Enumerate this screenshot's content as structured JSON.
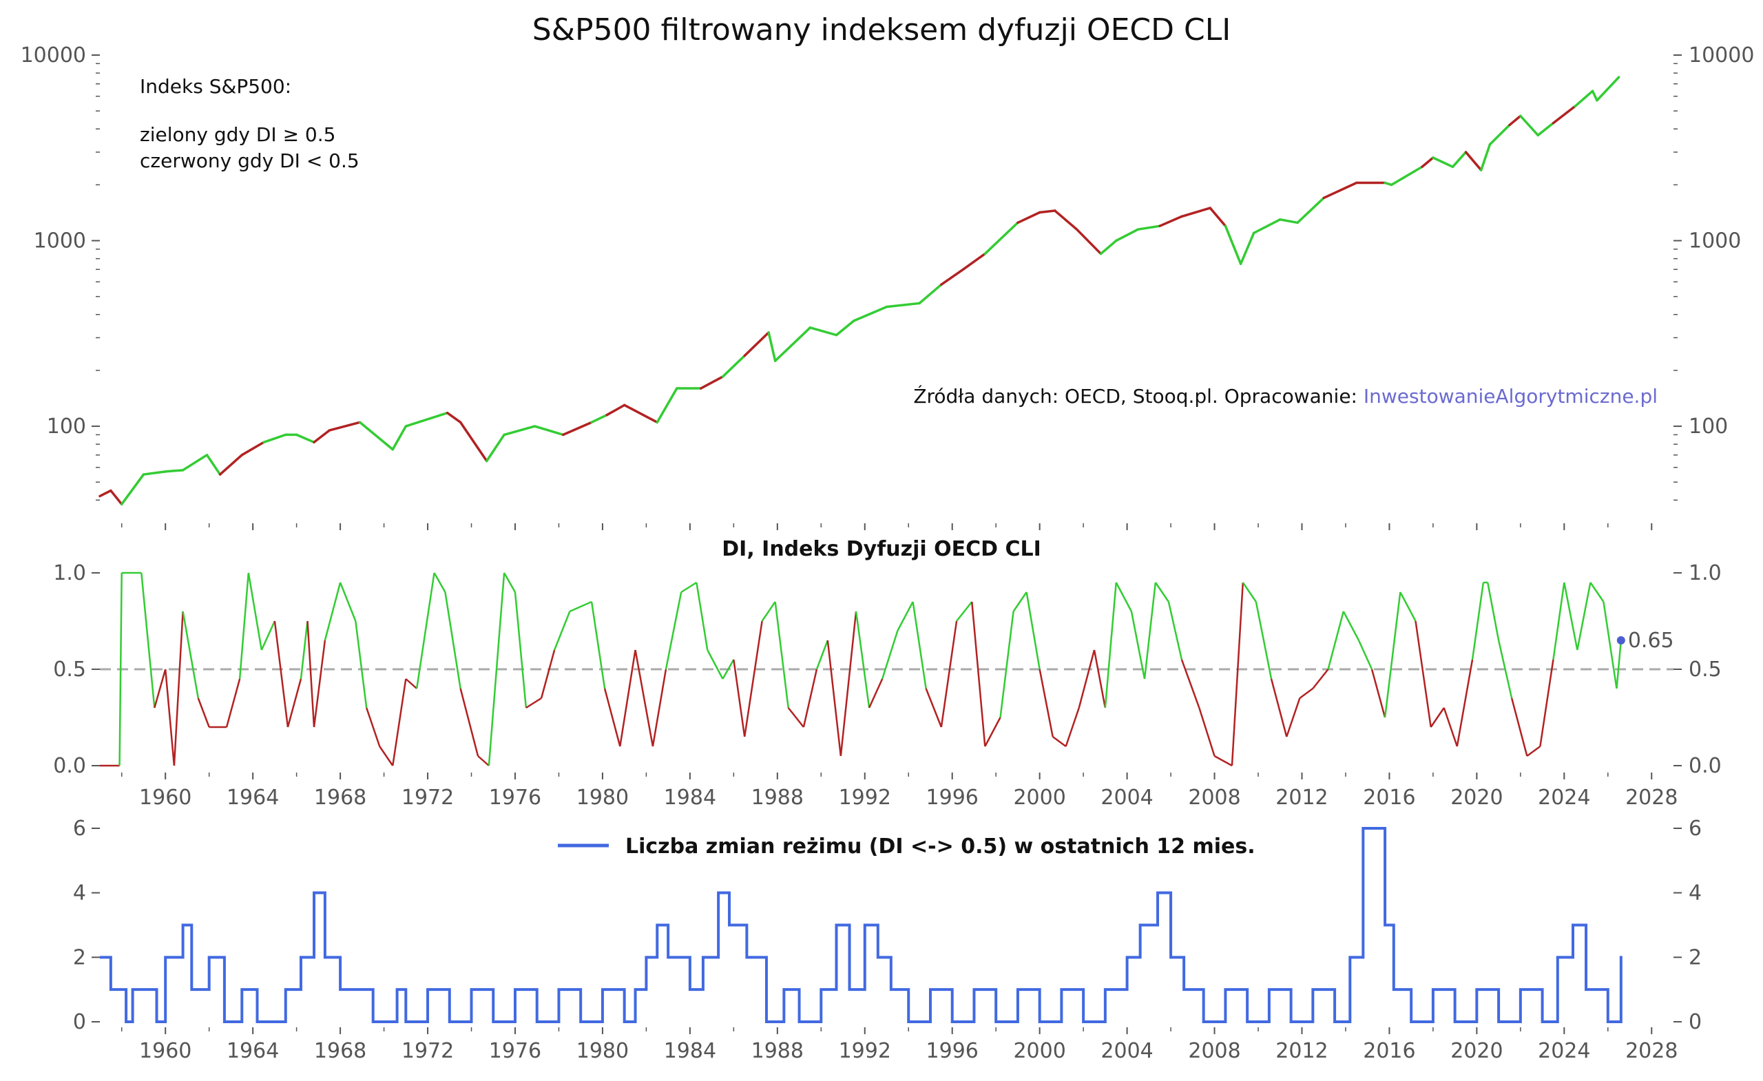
{
  "colors": {
    "green": "#33cc33",
    "red": "#b22222",
    "blue": "#4169e1",
    "threshold": "#aaaaaa",
    "link": "#6a6ad0",
    "axis": "#555555"
  },
  "chart_data": [
    {
      "id": "sp500",
      "type": "line",
      "title": "S&P500 filtrowany indeksem dyfuzji OECD CLI",
      "yscale": "log",
      "ylim": [
        30,
        10000
      ],
      "xlim": [
        1957.0,
        2029.0
      ],
      "yticks": [
        "100",
        "1000",
        "10000"
      ],
      "xlabel": "",
      "ylabel": "",
      "annotation_lines": [
        "Indeks S&P500:",
        "zielony gdy DI ≥ 0.5",
        "czerwony gdy DI < 0.5"
      ],
      "source_text": "Źródła danych: OECD, Stooq.pl. Opracowanie: ",
      "source_link": "InwestowanieAlgorytmiczne.pl",
      "series": [
        {
          "values_note": "",
          "x": [
            1957.0,
            1957.5,
            1958.0,
            1959.0,
            1960.0,
            1960.8,
            1961.9,
            1962.5,
            1963.5,
            1964.5,
            1965.5,
            1966.0,
            1966.8,
            1967.5,
            1968.9,
            1970.4,
            1971.0,
            1972.9,
            1973.5,
            1974.7,
            1975.5,
            1976.9,
            1978.2,
            1979.5,
            1980.2,
            1981.0,
            1982.5,
            1983.4,
            1984.5,
            1985.5,
            1986.5,
            1987.6,
            1987.9,
            1989.5,
            1990.7,
            1991.5,
            1993.0,
            1994.5,
            1995.5,
            1996.5,
            1997.5,
            1998.5,
            1999.0,
            2000.0,
            2000.7,
            2001.7,
            2002.8,
            2003.5,
            2004.5,
            2005.5,
            2006.5,
            2007.8,
            2008.5,
            2009.2,
            2009.8,
            2011.0,
            2011.8,
            2013.0,
            2014.5,
            2015.8,
            2016.1,
            2017.5,
            2018.0,
            2018.9,
            2019.5,
            2020.2,
            2020.6,
            2021.5,
            2022.0,
            2022.8,
            2023.5,
            2024.5,
            2025.3,
            2025.5,
            2026.5
          ],
          "y": [
            42,
            45,
            38,
            55,
            57,
            58,
            70,
            55,
            70,
            82,
            90,
            90,
            82,
            95,
            105,
            75,
            100,
            118,
            105,
            65,
            90,
            100,
            90,
            105,
            115,
            130,
            105,
            160,
            160,
            185,
            240,
            320,
            225,
            340,
            310,
            370,
            440,
            460,
            580,
            700,
            850,
            1100,
            1250,
            1420,
            1450,
            1150,
            850,
            1000,
            1150,
            1200,
            1350,
            1500,
            1200,
            750,
            1100,
            1300,
            1250,
            1700,
            2050,
            2050,
            2000,
            2500,
            2800,
            2500,
            3000,
            2400,
            3300,
            4200,
            4700,
            3700,
            4300,
            5300,
            6400,
            5700,
            7600
          ],
          "colors_by_segment": "rrgggggrrgggrrgggrrgggrgrrggrgrgggggggrrggrrrrgggrrrgggggrrggrggrggrggrggg"
        }
      ]
    },
    {
      "id": "di",
      "type": "line",
      "title": "DI, Indeks Dyfuzji OECD CLI",
      "ylim": [
        0.0,
        1.0
      ],
      "yticks": [
        "0.0",
        "0.5",
        "1.0"
      ],
      "xticks": [
        "1960",
        "1964",
        "1968",
        "1972",
        "1976",
        "1980",
        "1984",
        "1988",
        "1992",
        "1996",
        "2000",
        "2004",
        "2008",
        "2012",
        "2016",
        "2020",
        "2024",
        "2028"
      ],
      "threshold": 0.5,
      "last_value_label": "0.65",
      "last_value": 0.65,
      "series": [
        {
          "x": [
            1957.0,
            1957.9,
            1958.0,
            1958.9,
            1959.5,
            1960.0,
            1960.4,
            1960.8,
            1961.5,
            1962.0,
            1962.8,
            1963.4,
            1963.8,
            1964.4,
            1965.0,
            1965.6,
            1966.2,
            1966.5,
            1966.8,
            1967.3,
            1968.0,
            1968.7,
            1969.2,
            1969.8,
            1970.4,
            1971.0,
            1971.5,
            1972.3,
            1972.8,
            1973.5,
            1974.3,
            1974.8,
            1975.5,
            1976.0,
            1976.5,
            1977.2,
            1977.8,
            1978.5,
            1979.5,
            1980.1,
            1980.8,
            1981.5,
            1982.3,
            1982.9,
            1983.6,
            1984.3,
            1984.8,
            1985.5,
            1986.0,
            1986.5,
            1987.3,
            1987.9,
            1988.5,
            1989.2,
            1989.8,
            1990.3,
            1990.9,
            1991.6,
            1992.2,
            1992.8,
            1993.5,
            1994.2,
            1994.8,
            1995.5,
            1996.2,
            1996.9,
            1997.5,
            1998.2,
            1998.8,
            1999.4,
            2000.0,
            2000.6,
            2001.2,
            2001.8,
            2002.5,
            2003.0,
            2003.5,
            2004.2,
            2004.8,
            2005.3,
            2005.9,
            2006.5,
            2007.3,
            2008.0,
            2008.8,
            2009.3,
            2009.9,
            2010.6,
            2011.3,
            2011.9,
            2012.5,
            2013.2,
            2013.9,
            2014.6,
            2015.2,
            2015.8,
            2016.5,
            2017.2,
            2017.9,
            2018.5,
            2019.1,
            2019.8,
            2020.3,
            2020.5,
            2021.0,
            2021.6,
            2022.3,
            2022.9,
            2023.5,
            2024.0,
            2024.6,
            2025.2,
            2025.8,
            2026.4,
            2026.6
          ],
          "y": [
            0.0,
            0.0,
            1.0,
            1.0,
            0.3,
            0.5,
            0.0,
            0.8,
            0.35,
            0.2,
            0.2,
            0.45,
            1.0,
            0.6,
            0.75,
            0.2,
            0.45,
            0.75,
            0.2,
            0.65,
            0.95,
            0.75,
            0.3,
            0.1,
            0.0,
            0.45,
            0.4,
            1.0,
            0.9,
            0.4,
            0.05,
            0.0,
            1.0,
            0.9,
            0.3,
            0.35,
            0.6,
            0.8,
            0.85,
            0.4,
            0.1,
            0.6,
            0.1,
            0.5,
            0.9,
            0.95,
            0.6,
            0.45,
            0.55,
            0.15,
            0.75,
            0.85,
            0.3,
            0.2,
            0.5,
            0.65,
            0.05,
            0.8,
            0.3,
            0.45,
            0.7,
            0.85,
            0.4,
            0.2,
            0.75,
            0.85,
            0.1,
            0.25,
            0.8,
            0.9,
            0.5,
            0.15,
            0.1,
            0.3,
            0.6,
            0.3,
            0.95,
            0.8,
            0.45,
            0.95,
            0.85,
            0.55,
            0.3,
            0.05,
            0.0,
            0.95,
            0.85,
            0.45,
            0.15,
            0.35,
            0.4,
            0.5,
            0.8,
            0.65,
            0.5,
            0.25,
            0.9,
            0.75,
            0.2,
            0.3,
            0.1,
            0.55,
            0.95,
            0.95,
            0.65,
            0.35,
            0.05,
            0.1,
            0.55,
            0.95,
            0.6,
            0.95,
            0.85,
            0.4,
            0.65
          ]
        }
      ]
    },
    {
      "id": "regime_changes",
      "type": "line",
      "legend_label": "Liczba zmian reżimu (DI <-> 0.5) w ostatnich 12 mies.",
      "legend_position": "top-center",
      "ylim": [
        0,
        6
      ],
      "yticks": [
        "0",
        "2",
        "4",
        "6"
      ],
      "xticks": [
        "1960",
        "1964",
        "1968",
        "1972",
        "1976",
        "1980",
        "1984",
        "1988",
        "1992",
        "1996",
        "2000",
        "2004",
        "2008",
        "2012",
        "2016",
        "2020",
        "2024",
        "2028"
      ],
      "series": [
        {
          "name": "Liczba zmian reżimu (DI <-> 0.5) w ostatnich 12 mies.",
          "x": [
            1957.0,
            1957.5,
            1958.2,
            1958.5,
            1959.6,
            1960.0,
            1960.8,
            1961.2,
            1962.0,
            1962.7,
            1963.5,
            1964.2,
            1965.5,
            1966.2,
            1966.8,
            1967.3,
            1968.0,
            1969.5,
            1970.6,
            1971.0,
            1972.0,
            1973.0,
            1974.0,
            1975.0,
            1976.0,
            1977.0,
            1978.0,
            1979.0,
            1980.0,
            1981.0,
            1981.5,
            1982.0,
            1982.5,
            1983.0,
            1984.0,
            1984.6,
            1985.3,
            1985.8,
            1986.6,
            1987.5,
            1988.3,
            1989.0,
            1990.0,
            1990.7,
            1991.3,
            1992.0,
            1992.6,
            1993.2,
            1994.0,
            1995.0,
            1996.0,
            1997.0,
            1998.0,
            1999.0,
            2000.0,
            2001.0,
            2002.0,
            2003.0,
            2004.0,
            2004.6,
            2005.4,
            2006.0,
            2006.6,
            2007.5,
            2008.5,
            2009.5,
            2010.5,
            2011.5,
            2012.5,
            2013.5,
            2014.2,
            2014.8,
            2015.8,
            2016.2,
            2017.0,
            2018.0,
            2019.0,
            2020.0,
            2021.0,
            2022.0,
            2023.0,
            2023.7,
            2024.4,
            2025.0,
            2026.0,
            2026.6
          ],
          "y": [
            2,
            1,
            0,
            1,
            0,
            2,
            3,
            1,
            2,
            0,
            1,
            0,
            1,
            2,
            4,
            2,
            1,
            0,
            1,
            0,
            1,
            0,
            1,
            0,
            1,
            0,
            1,
            0,
            1,
            0,
            1,
            2,
            3,
            2,
            1,
            2,
            4,
            3,
            2,
            0,
            1,
            0,
            1,
            3,
            1,
            3,
            2,
            1,
            0,
            1,
            0,
            1,
            0,
            1,
            0,
            1,
            0,
            1,
            2,
            3,
            4,
            2,
            1,
            0,
            1,
            0,
            1,
            0,
            1,
            0,
            2,
            6,
            3,
            1,
            0,
            1,
            0,
            1,
            0,
            1,
            0,
            2,
            3,
            1,
            0,
            2
          ]
        }
      ]
    }
  ]
}
